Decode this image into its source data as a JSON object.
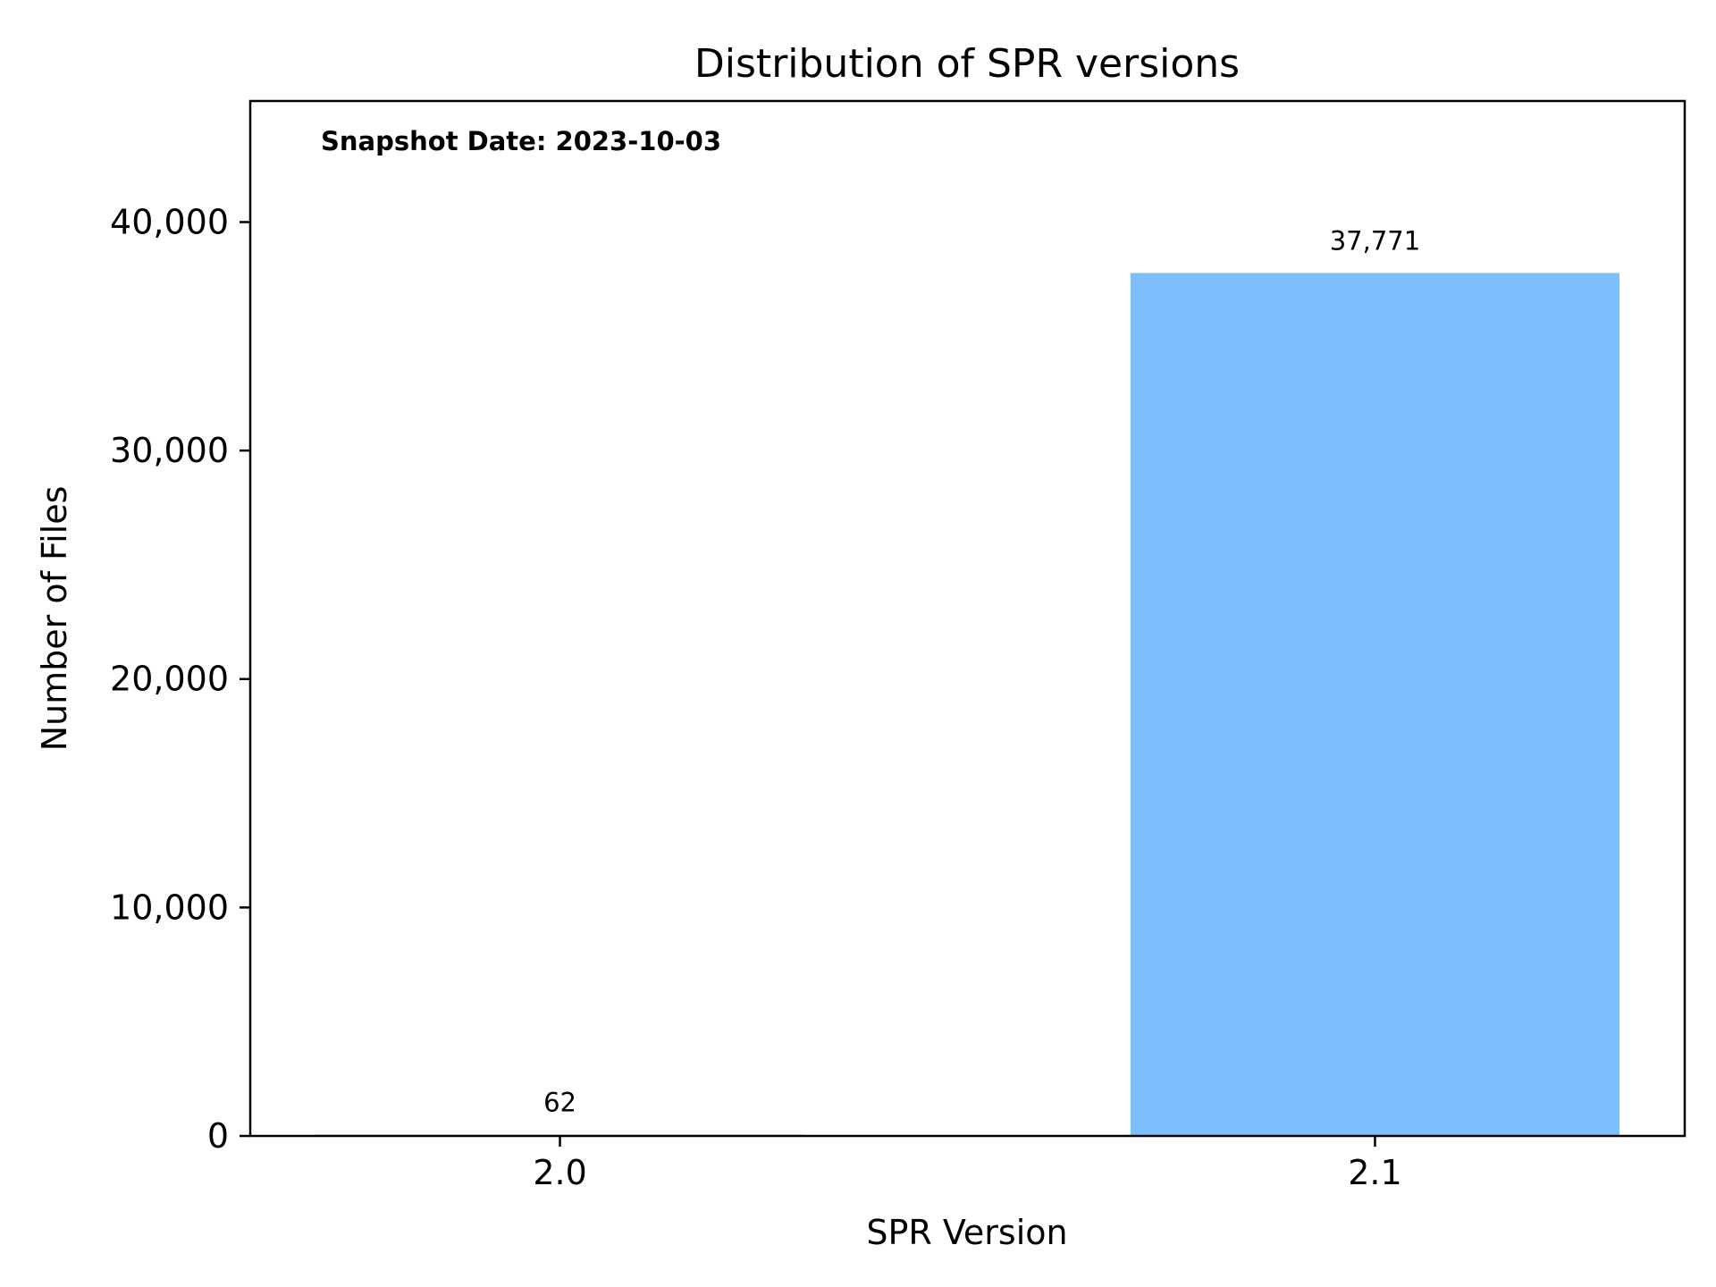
{
  "chart_data": {
    "type": "bar",
    "title": "Distribution of SPR versions",
    "xlabel": "SPR Version",
    "ylabel": "Number of Files",
    "categories": [
      "2.0",
      "2.1"
    ],
    "values": [
      62,
      37771
    ],
    "value_labels": [
      "62",
      "37,771"
    ],
    "ylim": [
      0,
      45300
    ],
    "yticks": [
      0,
      10000,
      20000,
      30000,
      40000
    ],
    "ytick_labels": [
      "0",
      "10,000",
      "20,000",
      "30,000",
      "40,000"
    ],
    "annotation": "Snapshot Date: 2023-10-03",
    "bar_color": "#7dbefc",
    "grid": false,
    "legend": false
  }
}
